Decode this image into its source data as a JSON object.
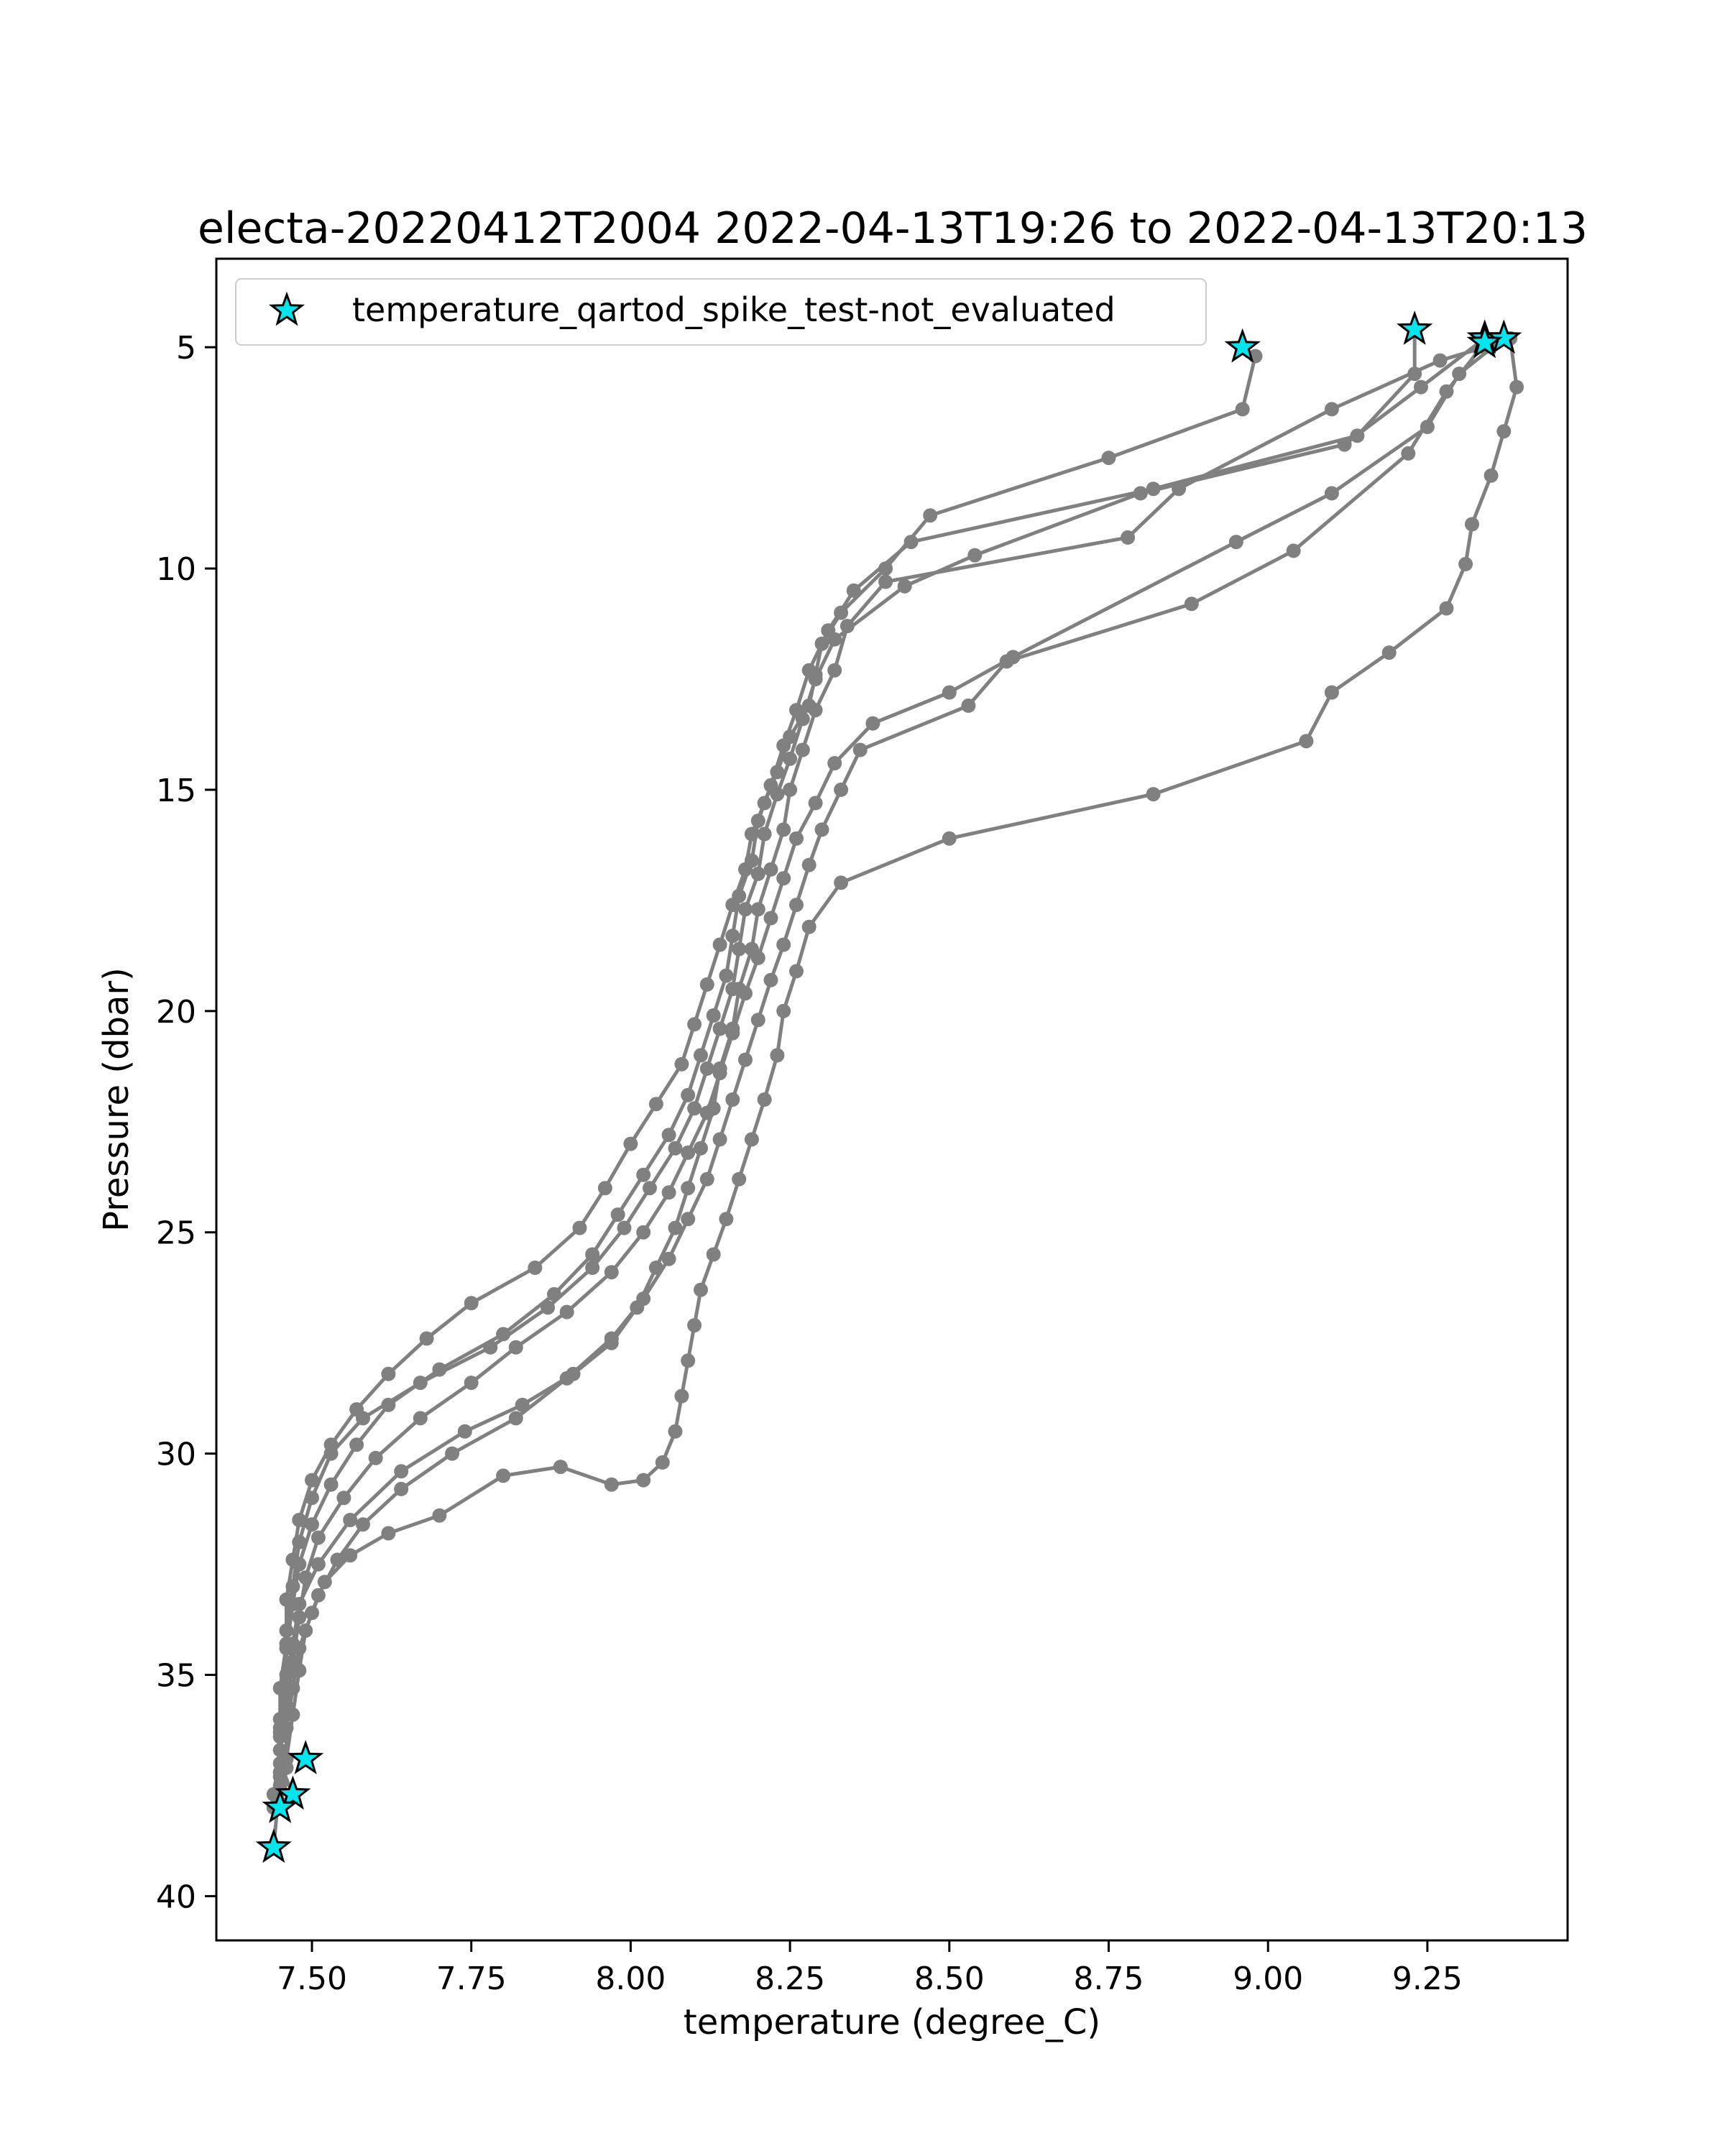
{
  "chart_data": {
    "type": "line",
    "title": "electa-20220412T2004 2022-04-13T19:26 to 2022-04-13T20:13",
    "xlabel": "temperature (degree_C)",
    "ylabel": "Pressure (dbar)",
    "xlim": [
      7.35,
      9.47
    ],
    "ylim": [
      41.0,
      3.0
    ],
    "y_inverted": true,
    "xticks": [
      7.5,
      7.75,
      8.0,
      8.25,
      8.5,
      8.75,
      9.0,
      9.25
    ],
    "xtick_labels": [
      "7.50",
      "7.75",
      "8.00",
      "8.25",
      "8.50",
      "8.75",
      "9.00",
      "9.25"
    ],
    "yticks": [
      5,
      10,
      15,
      20,
      25,
      30,
      35,
      40
    ],
    "ytick_labels": [
      "5",
      "10",
      "15",
      "20",
      "25",
      "30",
      "35",
      "40"
    ],
    "grid": false,
    "legend_position": "top-left",
    "legend": [
      {
        "label": "temperature_qartod_spike_test-not_evaluated",
        "marker": "star",
        "color": "#00e5ee"
      }
    ],
    "line_color": "#808080",
    "profiles": [
      {
        "x": [
          8.96,
          8.98,
          8.96,
          8.75,
          8.47,
          8.4,
          8.33,
          8.3,
          8.29,
          8.28,
          8.25,
          8.23,
          8.21,
          8.19,
          8.18,
          8.16,
          8.14,
          8.12,
          8.1,
          8.08,
          8.04,
          8.0,
          7.96,
          7.92,
          7.85,
          7.75,
          7.68,
          7.62,
          7.57,
          7.53,
          7.5,
          7.48,
          7.47,
          7.46,
          7.46,
          7.45,
          7.45,
          7.45,
          7.44
        ],
        "y": [
          5.0,
          5.2,
          6.4,
          7.5,
          8.8,
          10.0,
          11.0,
          11.7,
          12.4,
          13.1,
          13.8,
          14.6,
          15.3,
          16.0,
          16.8,
          17.6,
          18.5,
          19.4,
          20.3,
          21.2,
          22.1,
          23.0,
          24.0,
          24.9,
          25.8,
          26.6,
          27.4,
          28.2,
          29.0,
          29.8,
          30.6,
          31.5,
          32.4,
          33.3,
          34.3,
          35.3,
          36.3,
          37.3,
          38.9
        ]
      },
      {
        "x": [
          9.23,
          9.23,
          9.14,
          8.82,
          8.44,
          8.35,
          8.31,
          8.28,
          8.26,
          8.24,
          8.22,
          8.2,
          8.19,
          8.17,
          8.16,
          8.15,
          8.13,
          8.11,
          8.09,
          8.06,
          8.02,
          7.98,
          7.94,
          7.88,
          7.8,
          7.7,
          7.62,
          7.57,
          7.53,
          7.5,
          7.48,
          7.47,
          7.46,
          7.46,
          7.45,
          7.45,
          7.44
        ],
        "y": [
          4.6,
          5.6,
          7.0,
          8.2,
          9.4,
          10.5,
          11.4,
          12.3,
          13.2,
          14.0,
          14.9,
          15.7,
          16.6,
          17.4,
          18.3,
          19.2,
          20.1,
          21.0,
          21.9,
          22.8,
          23.7,
          24.6,
          25.5,
          26.4,
          27.3,
          28.1,
          28.9,
          29.8,
          30.7,
          31.6,
          32.5,
          33.4,
          34.4,
          35.4,
          36.4,
          37.5,
          38.0
        ]
      },
      {
        "x": [
          9.34,
          9.24,
          9.12,
          8.8,
          8.54,
          8.43,
          8.32,
          8.29,
          8.27,
          8.25,
          8.23,
          8.21,
          8.2,
          8.18,
          8.17,
          8.16,
          8.14,
          8.12,
          8.1,
          8.07,
          8.03,
          7.99,
          7.94,
          7.87,
          7.78,
          7.67,
          7.58,
          7.53,
          7.5,
          7.48,
          7.47,
          7.46,
          7.46,
          7.45,
          7.45,
          7.47
        ],
        "y": [
          4.8,
          5.9,
          7.2,
          8.3,
          9.7,
          10.4,
          11.6,
          12.5,
          13.4,
          14.3,
          15.1,
          16.0,
          16.9,
          17.7,
          18.6,
          19.5,
          20.4,
          21.3,
          22.2,
          23.1,
          24.0,
          24.9,
          25.8,
          26.7,
          27.6,
          28.4,
          29.2,
          30.0,
          31.0,
          32.0,
          33.0,
          34.0,
          35.0,
          36.0,
          37.0,
          37.7
        ]
      },
      {
        "x": [
          9.34,
          9.28,
          9.22,
          9.04,
          8.88,
          8.59,
          8.53,
          8.36,
          8.33,
          8.3,
          8.28,
          8.26,
          8.24,
          8.22,
          8.2,
          8.18,
          8.16,
          8.14,
          8.12,
          8.09,
          8.06,
          8.02,
          7.97,
          7.9,
          7.82,
          7.72,
          7.64,
          7.58,
          7.54,
          7.51,
          7.49,
          7.48,
          7.47,
          7.46,
          7.45
        ],
        "y": [
          4.9,
          6.0,
          7.4,
          9.6,
          10.8,
          12.1,
          13.1,
          14.1,
          15.0,
          15.9,
          16.7,
          17.6,
          18.5,
          19.3,
          20.2,
          21.1,
          22.0,
          22.9,
          23.8,
          24.7,
          25.6,
          26.5,
          27.4,
          28.3,
          29.2,
          30.0,
          30.8,
          31.6,
          32.4,
          33.2,
          34.0,
          34.9,
          35.9,
          36.9,
          37.9
        ]
      },
      {
        "x": [
          9.37,
          9.3,
          9.25,
          9.1,
          8.95,
          8.6,
          8.5,
          8.38,
          8.32,
          8.29,
          8.26,
          8.24,
          8.22,
          8.2,
          8.18,
          8.16,
          8.14,
          8.12,
          8.09,
          8.06,
          8.02,
          7.97,
          7.9,
          7.82,
          7.75,
          7.67,
          7.6,
          7.55,
          7.51,
          7.49,
          7.48,
          7.47,
          7.46,
          7.45,
          7.44
        ],
        "y": [
          4.8,
          5.6,
          6.8,
          8.3,
          9.4,
          12.0,
          12.8,
          13.5,
          14.4,
          15.3,
          16.1,
          17.0,
          17.9,
          18.8,
          19.6,
          20.5,
          21.4,
          22.3,
          23.2,
          24.1,
          25.0,
          25.9,
          26.8,
          27.6,
          28.4,
          29.2,
          30.1,
          31.0,
          31.9,
          32.8,
          33.7,
          34.7,
          35.7,
          36.7,
          37.7
        ]
      },
      {
        "x": [
          9.38,
          9.39,
          9.37,
          9.35,
          9.32,
          9.31,
          9.28,
          9.19,
          9.1,
          9.06,
          8.82,
          8.5,
          8.33,
          8.28,
          8.26,
          8.24,
          8.23,
          8.21,
          8.19,
          8.17,
          8.15,
          8.13,
          8.11,
          8.1,
          8.09,
          8.08,
          8.07,
          8.05,
          8.02,
          7.97,
          7.89,
          7.8,
          7.7,
          7.62,
          7.56,
          7.52,
          7.5,
          7.48,
          7.47,
          7.46,
          7.46,
          7.45
        ],
        "y": [
          4.8,
          5.9,
          6.9,
          7.9,
          9.0,
          9.9,
          10.9,
          11.9,
          12.8,
          13.9,
          15.1,
          16.1,
          17.1,
          18.1,
          19.1,
          20.0,
          21.0,
          22.0,
          22.9,
          23.8,
          24.7,
          25.5,
          26.3,
          27.1,
          27.9,
          28.7,
          29.5,
          30.2,
          30.6,
          30.7,
          30.3,
          30.5,
          31.4,
          31.8,
          32.3,
          32.9,
          33.6,
          34.4,
          35.3,
          36.2,
          37.1,
          38.0
        ]
      },
      {
        "x": [
          9.34,
          9.27,
          9.1,
          8.86,
          8.78,
          8.4,
          8.34,
          8.32,
          8.29,
          8.27,
          8.25,
          8.24,
          8.22,
          8.2,
          8.19,
          8.17,
          8.16,
          8.14,
          8.13,
          8.11,
          8.09,
          8.07,
          8.04,
          8.01,
          7.97,
          7.91,
          7.83,
          7.74,
          7.64,
          7.56,
          7.51,
          7.48,
          7.47,
          7.46,
          7.45,
          7.45
        ],
        "y": [
          5.0,
          5.3,
          6.4,
          8.2,
          9.3,
          10.3,
          11.3,
          12.3,
          13.2,
          14.1,
          15.0,
          15.9,
          16.8,
          17.7,
          18.6,
          19.5,
          20.4,
          21.3,
          22.2,
          23.1,
          24.0,
          24.9,
          25.8,
          26.7,
          27.5,
          28.2,
          28.9,
          29.5,
          30.4,
          31.5,
          32.5,
          33.4,
          34.3,
          35.2,
          36.2,
          37.2
        ]
      }
    ],
    "flagged_points": [
      {
        "x": 8.96,
        "y": 5.0
      },
      {
        "x": 9.23,
        "y": 4.6
      },
      {
        "x": 9.34,
        "y": 4.8
      },
      {
        "x": 9.37,
        "y": 4.8
      },
      {
        "x": 9.34,
        "y": 4.9
      },
      {
        "x": 7.49,
        "y": 36.9
      },
      {
        "x": 7.47,
        "y": 37.7
      },
      {
        "x": 7.45,
        "y": 38.0
      },
      {
        "x": 7.44,
        "y": 38.9
      }
    ]
  }
}
